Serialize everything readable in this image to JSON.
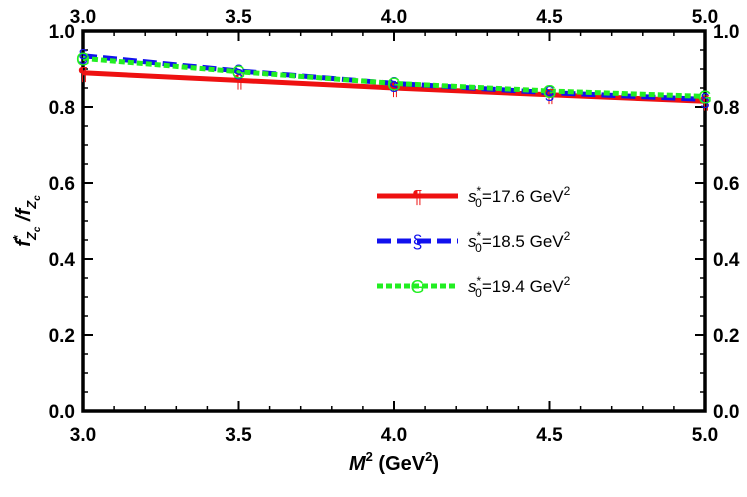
{
  "chart_data": {
    "type": "line",
    "xlabel": {
      "main": "M",
      "sup": "2",
      "unit_open": " (GeV",
      "unit_sup": "2",
      "unit_close": ")"
    },
    "ylabel": {
      "f": "f",
      "star": "*",
      "sub1": "Z",
      "sub2": "c",
      "slash": " /f",
      "sub3": "Z",
      "sub4": "c"
    },
    "xlim": [
      3.0,
      5.0
    ],
    "ylim": [
      0.0,
      1.0
    ],
    "xticks": [
      "3.0",
      "3.5",
      "4.0",
      "4.5",
      "5.0"
    ],
    "yticks": [
      "0.0",
      "0.2",
      "0.4",
      "0.6",
      "0.8",
      "1.0"
    ],
    "legend_position": "center-right",
    "series": [
      {
        "name": "s0*=17.6 GeV2",
        "legend": {
          "s": "s",
          "sub": "0",
          "sup": "*",
          "value": "=17.6 GeV",
          "unit_sup": "2"
        },
        "color": "#ee1111",
        "style": "solid",
        "marker": "¶",
        "x": [
          3.0,
          3.5,
          4.0,
          4.5,
          5.0
        ],
        "y": [
          0.89,
          0.87,
          0.85,
          0.832,
          0.815
        ]
      },
      {
        "name": "s0*=18.5 GeV2",
        "legend": {
          "s": "s",
          "sub": "0",
          "sup": "*",
          "value": "=18.5 GeV",
          "unit_sup": "2"
        },
        "color": "#1111ee",
        "style": "dashed",
        "marker": "§",
        "x": [
          3.0,
          3.5,
          4.0,
          4.5,
          5.0
        ],
        "y": [
          0.935,
          0.895,
          0.862,
          0.838,
          0.82
        ]
      },
      {
        "name": "s0*=19.4 GeV2",
        "legend": {
          "s": "s",
          "sub": "0",
          "sup": "*",
          "value": "=19.4 GeV",
          "unit_sup": "2"
        },
        "color": "#22ee22",
        "style": "dotted",
        "marker": "G",
        "x": [
          3.0,
          3.5,
          4.0,
          4.5,
          5.0
        ],
        "y": [
          0.928,
          0.893,
          0.862,
          0.842,
          0.828
        ]
      }
    ]
  }
}
